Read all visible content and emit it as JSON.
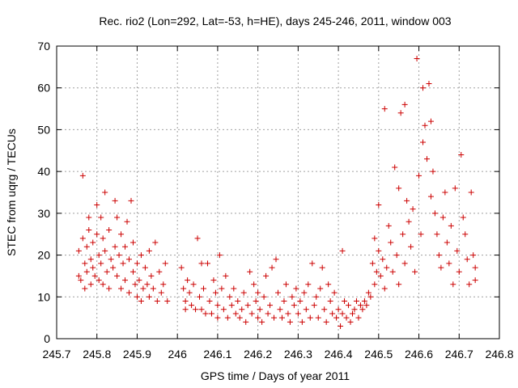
{
  "chart_data": {
    "type": "scatter",
    "title": "Rec. rio2 (Lon=292, Lat=-53, h=HE), days 245-246, 2011, window 003",
    "xlabel": "GPS time / Days of year 2011",
    "ylabel": "STEC from uqrg / TECUs",
    "xlim": [
      245.7,
      246.8
    ],
    "ylim": [
      0,
      70
    ],
    "xticks": [
      245.7,
      245.8,
      245.9,
      246.0,
      246.1,
      246.2,
      246.3,
      246.4,
      246.5,
      246.6,
      246.7,
      246.8
    ],
    "xtick_labels": [
      "245.7",
      "245.8",
      "245.9",
      "246",
      "246.1",
      "246.2",
      "246.3",
      "246.4",
      "246.5",
      "246.6",
      "246.7",
      "246.8"
    ],
    "yticks": [
      0,
      10,
      20,
      30,
      40,
      50,
      60,
      70
    ],
    "ytick_labels": [
      "0",
      "10",
      "20",
      "30",
      "40",
      "50",
      "60",
      "70"
    ],
    "grid": true,
    "legend": "none",
    "marker": "+",
    "color": "#cc0000",
    "points": [
      [
        245.755,
        21
      ],
      [
        245.755,
        15
      ],
      [
        245.76,
        14
      ],
      [
        245.765,
        39
      ],
      [
        245.765,
        24
      ],
      [
        245.77,
        18
      ],
      [
        245.77,
        12
      ],
      [
        245.775,
        22
      ],
      [
        245.775,
        16
      ],
      [
        245.78,
        29
      ],
      [
        245.78,
        26
      ],
      [
        245.785,
        19
      ],
      [
        245.785,
        13
      ],
      [
        245.79,
        23
      ],
      [
        245.79,
        17
      ],
      [
        245.795,
        15
      ],
      [
        245.8,
        32
      ],
      [
        245.8,
        25
      ],
      [
        245.805,
        20
      ],
      [
        245.805,
        14
      ],
      [
        245.81,
        29
      ],
      [
        245.81,
        18
      ],
      [
        245.815,
        24
      ],
      [
        245.815,
        13
      ],
      [
        245.82,
        35
      ],
      [
        245.82,
        21
      ],
      [
        245.825,
        16
      ],
      [
        245.83,
        26
      ],
      [
        245.83,
        12
      ],
      [
        245.835,
        19
      ],
      [
        245.84,
        17
      ],
      [
        245.845,
        33
      ],
      [
        245.845,
        22
      ],
      [
        245.85,
        29
      ],
      [
        245.85,
        15
      ],
      [
        245.855,
        20
      ],
      [
        245.86,
        25
      ],
      [
        245.86,
        12
      ],
      [
        245.865,
        18
      ],
      [
        245.87,
        22
      ],
      [
        245.87,
        14
      ],
      [
        245.875,
        28
      ],
      [
        245.88,
        19
      ],
      [
        245.88,
        11
      ],
      [
        245.885,
        33
      ],
      [
        245.89,
        23
      ],
      [
        245.89,
        16
      ],
      [
        245.895,
        13
      ],
      [
        245.9,
        18
      ],
      [
        245.9,
        10
      ],
      [
        245.905,
        14
      ],
      [
        245.91,
        20
      ],
      [
        245.91,
        9
      ],
      [
        245.915,
        12
      ],
      [
        245.92,
        17
      ],
      [
        245.925,
        13
      ],
      [
        245.93,
        21
      ],
      [
        245.93,
        10
      ],
      [
        245.935,
        15
      ],
      [
        245.94,
        12
      ],
      [
        245.945,
        23
      ],
      [
        245.95,
        9
      ],
      [
        245.955,
        16
      ],
      [
        245.96,
        11
      ],
      [
        245.965,
        13
      ],
      [
        245.97,
        18
      ],
      [
        245.975,
        9
      ],
      [
        246.01,
        17
      ],
      [
        246.015,
        12
      ],
      [
        246.02,
        9
      ],
      [
        246.02,
        7
      ],
      [
        246.025,
        14
      ],
      [
        246.03,
        11
      ],
      [
        246.035,
        8
      ],
      [
        246.04,
        13
      ],
      [
        246.045,
        7
      ],
      [
        246.05,
        24
      ],
      [
        246.055,
        10
      ],
      [
        246.06,
        18
      ],
      [
        246.06,
        7
      ],
      [
        246.065,
        12
      ],
      [
        246.07,
        6
      ],
      [
        246.075,
        18
      ],
      [
        246.08,
        9
      ],
      [
        246.085,
        6
      ],
      [
        246.09,
        14
      ],
      [
        246.095,
        11
      ],
      [
        246.1,
        8
      ],
      [
        246.1,
        5
      ],
      [
        246.105,
        20
      ],
      [
        246.11,
        12
      ],
      [
        246.115,
        7
      ],
      [
        246.12,
        15
      ],
      [
        246.125,
        5
      ],
      [
        246.13,
        10
      ],
      [
        246.135,
        8
      ],
      [
        246.14,
        12
      ],
      [
        246.145,
        6
      ],
      [
        246.15,
        9
      ],
      [
        246.155,
        5
      ],
      [
        246.16,
        7
      ],
      [
        246.165,
        11
      ],
      [
        246.17,
        4
      ],
      [
        246.175,
        8
      ],
      [
        246.18,
        16
      ],
      [
        246.185,
        6
      ],
      [
        246.19,
        13
      ],
      [
        246.195,
        9
      ],
      [
        246.2,
        5
      ],
      [
        246.2,
        11
      ],
      [
        246.205,
        7
      ],
      [
        246.21,
        4
      ],
      [
        246.215,
        10
      ],
      [
        246.22,
        15
      ],
      [
        246.225,
        6
      ],
      [
        246.23,
        8
      ],
      [
        246.235,
        17
      ],
      [
        246.24,
        5
      ],
      [
        246.245,
        19
      ],
      [
        246.25,
        11
      ],
      [
        246.255,
        7
      ],
      [
        246.26,
        5
      ],
      [
        246.265,
        9
      ],
      [
        246.27,
        13
      ],
      [
        246.275,
        6
      ],
      [
        246.28,
        4
      ],
      [
        246.285,
        10
      ],
      [
        246.29,
        8
      ],
      [
        246.295,
        12
      ],
      [
        246.3,
        6
      ],
      [
        246.305,
        9
      ],
      [
        246.31,
        4
      ],
      [
        246.315,
        11
      ],
      [
        246.32,
        7
      ],
      [
        246.325,
        13
      ],
      [
        246.33,
        5
      ],
      [
        246.335,
        18
      ],
      [
        246.34,
        8
      ],
      [
        246.345,
        10
      ],
      [
        246.35,
        5
      ],
      [
        246.355,
        12
      ],
      [
        246.36,
        17
      ],
      [
        246.365,
        7
      ],
      [
        246.37,
        4
      ],
      [
        246.375,
        13
      ],
      [
        246.38,
        9
      ],
      [
        246.385,
        6
      ],
      [
        246.39,
        11
      ],
      [
        246.395,
        5
      ],
      [
        246.4,
        7
      ],
      [
        246.405,
        3
      ],
      [
        246.41,
        21
      ],
      [
        246.41,
        6
      ],
      [
        246.415,
        9
      ],
      [
        246.42,
        5
      ],
      [
        246.425,
        8
      ],
      [
        246.43,
        4
      ],
      [
        246.435,
        6
      ],
      [
        246.44,
        7
      ],
      [
        246.445,
        9
      ],
      [
        246.45,
        5
      ],
      [
        246.455,
        8
      ],
      [
        246.46,
        7
      ],
      [
        246.465,
        9
      ],
      [
        246.47,
        8
      ],
      [
        246.475,
        11
      ],
      [
        246.48,
        10
      ],
      [
        246.485,
        18
      ],
      [
        246.49,
        24
      ],
      [
        246.49,
        13
      ],
      [
        246.495,
        16
      ],
      [
        246.5,
        32
      ],
      [
        246.5,
        21
      ],
      [
        246.505,
        15
      ],
      [
        246.51,
        19
      ],
      [
        246.515,
        55
      ],
      [
        246.515,
        12
      ],
      [
        246.52,
        17
      ],
      [
        246.525,
        27
      ],
      [
        246.53,
        23
      ],
      [
        246.535,
        16
      ],
      [
        246.54,
        41
      ],
      [
        246.545,
        20
      ],
      [
        246.55,
        36
      ],
      [
        246.55,
        13
      ],
      [
        246.555,
        54
      ],
      [
        246.56,
        25
      ],
      [
        246.565,
        56
      ],
      [
        246.565,
        18
      ],
      [
        246.57,
        33
      ],
      [
        246.575,
        28
      ],
      [
        246.58,
        22
      ],
      [
        246.585,
        31
      ],
      [
        246.59,
        16
      ],
      [
        246.595,
        67
      ],
      [
        246.6,
        39
      ],
      [
        246.605,
        25
      ],
      [
        246.61,
        60
      ],
      [
        246.61,
        47
      ],
      [
        246.615,
        51
      ],
      [
        246.62,
        43
      ],
      [
        246.625,
        61
      ],
      [
        246.63,
        52
      ],
      [
        246.63,
        34
      ],
      [
        246.635,
        40
      ],
      [
        246.64,
        30
      ],
      [
        246.645,
        25
      ],
      [
        246.65,
        20
      ],
      [
        246.655,
        17
      ],
      [
        246.66,
        29
      ],
      [
        246.665,
        35
      ],
      [
        246.67,
        23
      ],
      [
        246.675,
        18
      ],
      [
        246.68,
        27
      ],
      [
        246.685,
        13
      ],
      [
        246.69,
        36
      ],
      [
        246.695,
        21
      ],
      [
        246.7,
        16
      ],
      [
        246.705,
        44
      ],
      [
        246.71,
        29
      ],
      [
        246.715,
        25
      ],
      [
        246.72,
        19
      ],
      [
        246.725,
        13
      ],
      [
        246.73,
        35
      ],
      [
        246.735,
        20
      ],
      [
        246.74,
        17
      ],
      [
        246.74,
        14
      ]
    ]
  }
}
